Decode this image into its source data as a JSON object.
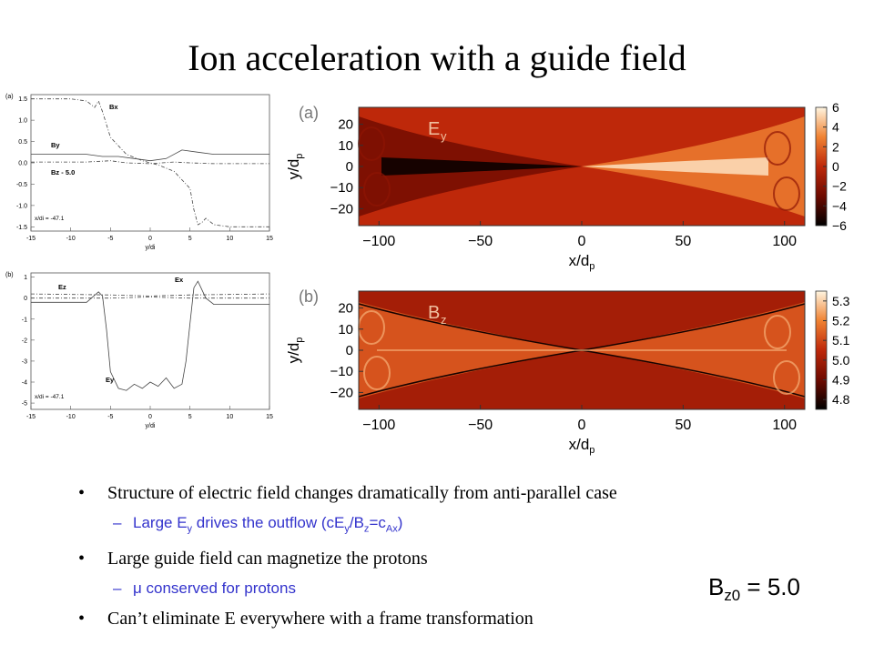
{
  "slide": {
    "title": "Ion acceleration with a guide field",
    "bz0_label": "B",
    "bz0_sub": "z0",
    "bz0_value": " = 5.0"
  },
  "bullets": [
    {
      "level": 1,
      "text": "Structure of electric field changes dramatically from anti-parallel case"
    },
    {
      "level": 2,
      "pre": "Large E",
      "sub1": "y",
      "mid": " drives the outflow (cE",
      "sub2": "y",
      "mid2": "/B",
      "sub3": "z",
      "mid3": "=c",
      "sub4": "Ax",
      "post": ")"
    },
    {
      "level": 1,
      "text": "Large guide field can magnetize the protons"
    },
    {
      "level": 2,
      "mu": "μ",
      "text": " conserved for protons"
    },
    {
      "level": 1,
      "text": "Can’t eliminate E everywhere with a frame transformation"
    }
  ],
  "chart_data": [
    {
      "type": "line",
      "panel": "(a)",
      "xlabel": "y/d_i",
      "xticks": [
        -15,
        -10,
        -5,
        0,
        5,
        10,
        15
      ],
      "yticks": [
        1.5,
        1.0,
        0.5,
        0.0,
        -0.5,
        -1.0,
        -1.5
      ],
      "xlim": [
        -15,
        15
      ],
      "ylim": [
        -1.6,
        1.6
      ],
      "annotation": "x/d_i = -47.1",
      "series_labels": [
        "B_x",
        "B_y",
        "B_z - 5.0"
      ],
      "series": [
        {
          "name": "Bx",
          "style": "dashdot",
          "x": [
            -15,
            -10,
            -8,
            -7,
            -6.5,
            -6,
            -5,
            -3,
            -1,
            0,
            1,
            3,
            5,
            5.5,
            6,
            6.5,
            7,
            8,
            10,
            15
          ],
          "y": [
            1.5,
            1.5,
            1.45,
            1.3,
            1.45,
            1.2,
            0.6,
            0.2,
            0.05,
            0.0,
            -0.05,
            -0.2,
            -0.6,
            -1.1,
            -1.45,
            -1.4,
            -1.3,
            -1.45,
            -1.5,
            -1.5
          ]
        },
        {
          "name": "By",
          "style": "solid",
          "x": [
            -15,
            -8,
            -6,
            -4,
            -2,
            0,
            2,
            4,
            6,
            8,
            15
          ],
          "y": [
            0.2,
            0.2,
            0.15,
            0.15,
            0.1,
            0.05,
            0.1,
            0.3,
            0.25,
            0.2,
            0.2
          ]
        },
        {
          "name": "Bz-5.0",
          "style": "dashdot",
          "x": [
            -15,
            -8,
            -5,
            -3,
            0,
            3,
            5,
            8,
            15
          ],
          "y": [
            0.02,
            0.02,
            0.05,
            0.0,
            -0.02,
            0.02,
            0.0,
            -0.02,
            -0.02
          ]
        }
      ]
    },
    {
      "type": "line",
      "panel": "(b)",
      "xlabel": "y/d_i",
      "xticks": [
        -15,
        -10,
        -5,
        0,
        5,
        10,
        15
      ],
      "yticks": [
        1,
        0,
        -1,
        -2,
        -3,
        -4,
        -5
      ],
      "xlim": [
        -15,
        15
      ],
      "ylim": [
        -5.3,
        1.2
      ],
      "annotation": "x/d_i = -47.1",
      "series_labels": [
        "E_z",
        "E_x",
        "E_y"
      ],
      "series": [
        {
          "name": "Ey",
          "style": "solid",
          "x": [
            -15,
            -8,
            -6.5,
            -6,
            -5.5,
            -5,
            -4,
            -3,
            -2,
            -1,
            0,
            1,
            2,
            3,
            4,
            4.5,
            5,
            5.5,
            6,
            7,
            8,
            15
          ],
          "y": [
            -0.2,
            -0.2,
            0.3,
            0.1,
            -1.5,
            -3.5,
            -4.3,
            -4.4,
            -4.1,
            -4.3,
            -4.0,
            -4.2,
            -3.8,
            -4.3,
            -4.1,
            -3.0,
            -1.2,
            0.5,
            0.8,
            0.0,
            -0.3,
            -0.3
          ]
        },
        {
          "name": "Ex",
          "style": "dashdot",
          "x": [
            -15,
            -5,
            0,
            5,
            15
          ],
          "y": [
            0.2,
            0.15,
            0.1,
            0.15,
            0.2
          ]
        },
        {
          "name": "Ez",
          "style": "dashdot",
          "x": [
            -15,
            -5,
            0,
            5,
            15
          ],
          "y": [
            0.0,
            0.0,
            0.05,
            0.0,
            0.0
          ]
        }
      ]
    },
    {
      "type": "heatmap",
      "panel": "(a)",
      "field_label": "E",
      "field_sub": "y",
      "xlabel": "x/d_p",
      "ylabel": "y/d_p",
      "xticks": [
        -100,
        -50,
        0,
        50,
        100
      ],
      "yticks": [
        20,
        10,
        0,
        -10,
        -20
      ],
      "colorbar_ticks": [
        6,
        4,
        2,
        0,
        -2,
        -4,
        -6
      ],
      "colorbar_range": [
        -6,
        6
      ]
    },
    {
      "type": "heatmap",
      "panel": "(b)",
      "field_label": "B",
      "field_sub": "z",
      "xlabel": "x/d_p",
      "ylabel": "y/d_p",
      "xticks": [
        -100,
        -50,
        0,
        50,
        100
      ],
      "yticks": [
        20,
        10,
        0,
        -10,
        -20
      ],
      "colorbar_ticks": [
        5.3,
        5.2,
        5.1,
        5.0,
        4.9,
        4.8
      ],
      "colorbar_range": [
        4.75,
        5.35
      ]
    }
  ]
}
